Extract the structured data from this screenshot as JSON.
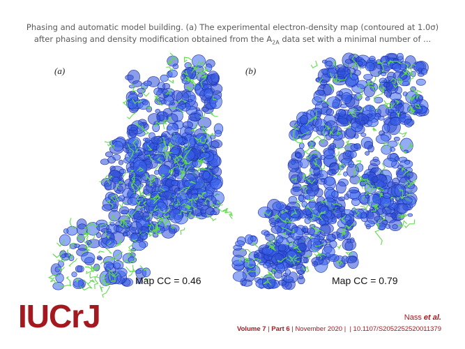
{
  "caption": {
    "line1": "Phasing and automatic model building. (a) The experimental electron-density map (contoured at 1.0σ)",
    "line2_start": "after phasing and density modification obtained from the A",
    "line2_sub": "2A",
    "line2_end": " data set with a minimal number of ..."
  },
  "panels": [
    {
      "label": "(a)",
      "metric": "Map CC = 0.46"
    },
    {
      "label": "(b)",
      "metric": "Map CC = 0.79"
    }
  ],
  "footer": {
    "logo": "IUCrJ",
    "author": "Nass",
    "author_suffix": "et al.",
    "volume": "Volume 7",
    "part": "Part 6",
    "date": "November 2020",
    "separator": "|",
    "doi": "10.1107/S2052252520011379"
  }
}
